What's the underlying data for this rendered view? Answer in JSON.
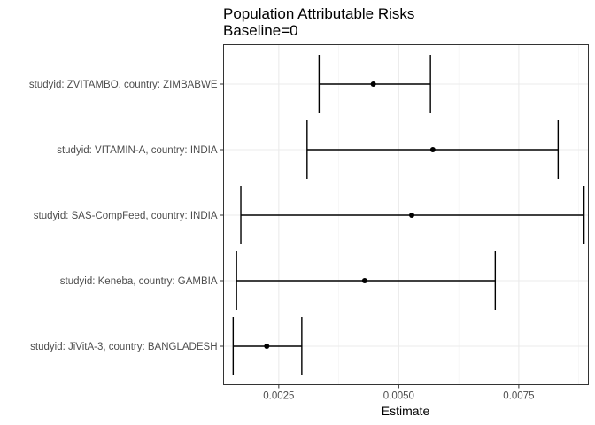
{
  "chart_data": {
    "type": "forest",
    "title": "Population Attributable Risks",
    "subtitle": "Baseline=0",
    "xlabel": "Estimate",
    "ylabel": "",
    "xlim": [
      0.00135,
      0.00895
    ],
    "x_ticks": [
      0.0025,
      0.005,
      0.0075
    ],
    "x_tick_labels": [
      "0.0025",
      "0.0050",
      "0.0075"
    ],
    "grid": true,
    "legend": "none",
    "categories": [
      "studyid: ZVITAMBO, country: ZIMBABWE",
      "studyid: VITAMIN-A, country: INDIA",
      "studyid: SAS-CompFeed, country: INDIA",
      "studyid: Keneba, country: GAMBIA",
      "studyid: JiVitA-3, country: BANGLADESH"
    ],
    "estimates": [
      0.00447,
      0.00571,
      0.00527,
      0.00429,
      0.00225
    ],
    "ci_lower": [
      0.00334,
      0.00309,
      0.00171,
      0.00162,
      0.00155
    ],
    "ci_upper": [
      0.00566,
      0.00832,
      0.00886,
      0.00701,
      0.00298
    ]
  }
}
